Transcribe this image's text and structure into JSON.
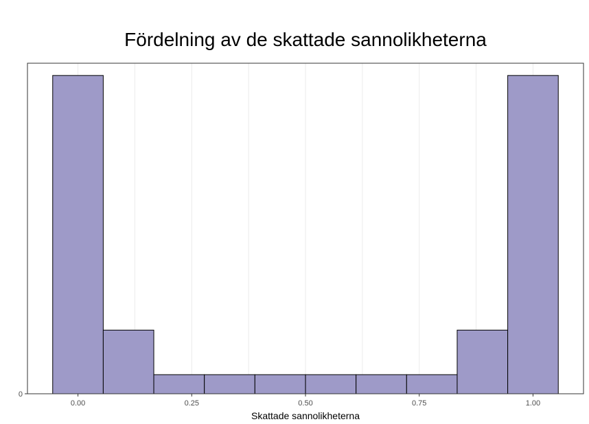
{
  "chart_data": {
    "type": "bar",
    "title": "Fördelning av de skattade sannolikheterna",
    "xlabel": "Skattade sannolikheterna",
    "ylabel": "",
    "bin_width": 0.1111,
    "bins": [
      {
        "center": 0.0,
        "value": 13
      },
      {
        "center": 0.1111,
        "value": 2.6
      },
      {
        "center": 0.2222,
        "value": 0.78
      },
      {
        "center": 0.3333,
        "value": 0.78
      },
      {
        "center": 0.4444,
        "value": 0.78
      },
      {
        "center": 0.5556,
        "value": 0.78
      },
      {
        "center": 0.6667,
        "value": 0.78
      },
      {
        "center": 0.7778,
        "value": 0.78
      },
      {
        "center": 0.8889,
        "value": 2.6
      },
      {
        "center": 1.0,
        "value": 13
      }
    ],
    "xlim": [
      -0.111,
      1.111
    ],
    "ylim": [
      0,
      13.5
    ],
    "x_ticks": [
      "0.00",
      "0.25",
      "0.50",
      "0.75",
      "1.00"
    ],
    "x_tick_values": [
      0,
      0.25,
      0.5,
      0.75,
      1.0
    ],
    "y_ticks": [
      "0"
    ],
    "y_tick_values": [
      0
    ],
    "grid": true,
    "colors": {
      "bar_fill": "#9e9ac8",
      "bar_stroke": "#000000",
      "grid": "#ebebeb",
      "panel_border": "#333333"
    }
  }
}
